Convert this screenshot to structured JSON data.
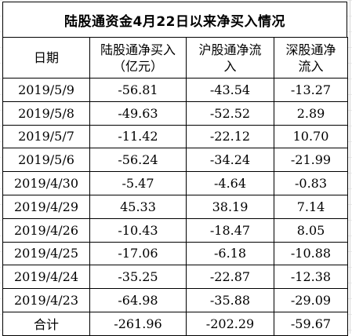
{
  "title": "陆股通资金4月22日以来净买入情况",
  "headers": {
    "date": "日期",
    "total_line1": "陆股通净买入",
    "total_line2": "（亿元）",
    "hu_line1": "沪股通净流",
    "hu_line2": "入",
    "shen_line1": "深股通净",
    "shen_line2": "流入"
  },
  "rows": [
    {
      "date": "2019/5/9",
      "total": "-56.81",
      "hu": "-43.54",
      "shen": "-13.27"
    },
    {
      "date": "2019/5/8",
      "total": "-49.63",
      "hu": "-52.52",
      "shen": "2.89"
    },
    {
      "date": "2019/5/7",
      "total": "-11.42",
      "hu": "-22.12",
      "shen": "10.70"
    },
    {
      "date": "2019/5/6",
      "total": "-56.24",
      "hu": "-34.24",
      "shen": "-21.99"
    },
    {
      "date": "2019/4/30",
      "total": "-5.47",
      "hu": "-4.64",
      "shen": "-0.83"
    },
    {
      "date": "2019/4/29",
      "total": "45.33",
      "hu": "38.19",
      "shen": "7.14"
    },
    {
      "date": "2019/4/26",
      "total": "-10.43",
      "hu": "-18.47",
      "shen": "8.05"
    },
    {
      "date": "2019/4/25",
      "total": "-17.06",
      "hu": "-6.18",
      "shen": "-10.88"
    },
    {
      "date": "2019/4/24",
      "total": "-35.25",
      "hu": "-22.87",
      "shen": "-12.38"
    },
    {
      "date": "2019/4/23",
      "total": "-64.98",
      "hu": "-35.88",
      "shen": "-29.09"
    }
  ],
  "summary": {
    "label": "合计",
    "total": "-261.96",
    "hu": "-202.29",
    "shen": "-59.67"
  }
}
